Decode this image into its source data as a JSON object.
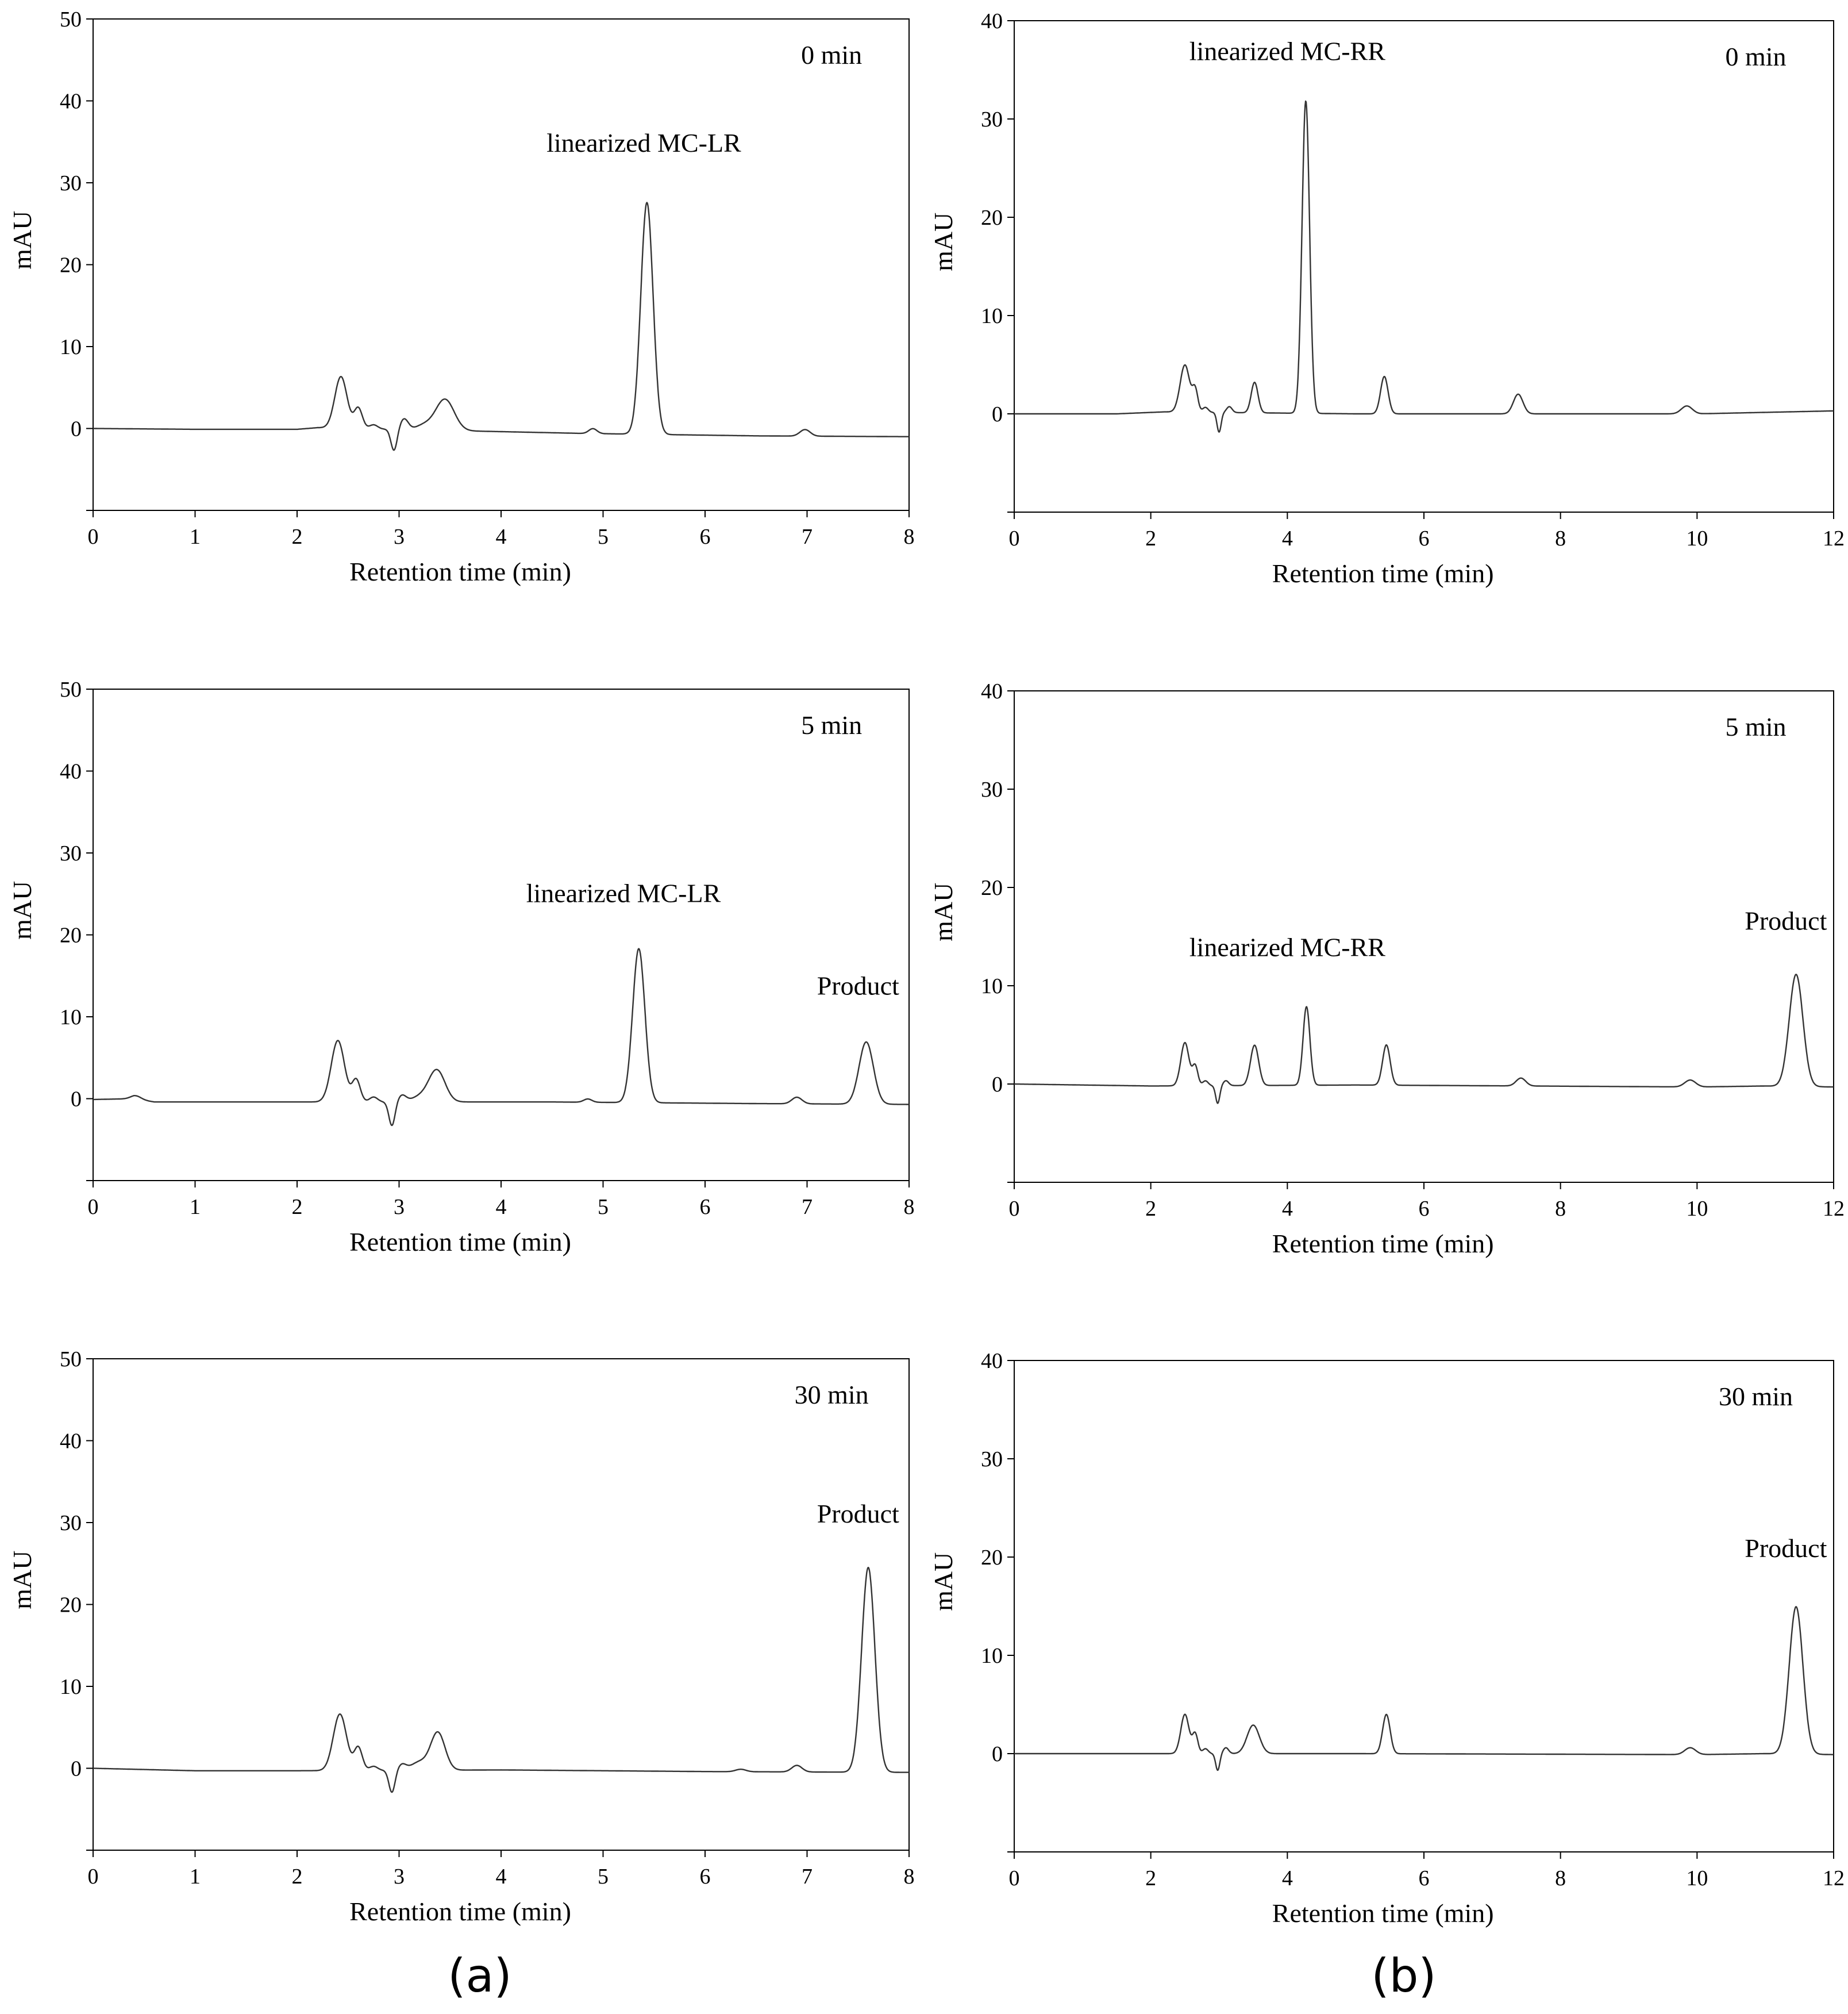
{
  "figure": {
    "panel_labels": [
      "(a)",
      "(b)"
    ]
  },
  "chart_data": [
    {
      "type": "line",
      "panel": "a",
      "time_label": "0 min",
      "xlabel": "Retention time (min)",
      "ylabel": "mAU",
      "xlim": [
        0,
        8
      ],
      "ylim": [
        -10,
        50
      ],
      "x_ticks": [
        0,
        1,
        2,
        3,
        4,
        5,
        6,
        7,
        8
      ],
      "y_ticks": [
        0,
        10,
        20,
        30,
        40,
        50
      ],
      "grid": false,
      "baseline": [
        [
          0,
          0
        ],
        [
          1,
          -0.1
        ],
        [
          2,
          -0.1
        ],
        [
          2.2,
          0.1
        ],
        [
          4.8,
          -0.6
        ],
        [
          6.5,
          -0.9
        ],
        [
          8,
          -1.0
        ]
      ],
      "peaks": [
        {
          "t": 2.43,
          "h": 6.3,
          "w": 0.06
        },
        {
          "t": 2.6,
          "h": 2.5,
          "w": 0.04
        },
        {
          "t": 2.75,
          "h": 0.5,
          "w": 0.04
        },
        {
          "t": 2.95,
          "h": -2.6,
          "w": 0.03
        },
        {
          "t": 3.05,
          "h": 1.3,
          "w": 0.04
        },
        {
          "t": 3.25,
          "h": 0.6,
          "w": 0.08
        },
        {
          "t": 3.45,
          "h": 3.8,
          "w": 0.09
        },
        {
          "t": 4.9,
          "h": 0.6,
          "w": 0.04
        },
        {
          "t": 5.43,
          "h": 28.3,
          "w": 0.06
        },
        {
          "t": 6.98,
          "h": 0.8,
          "w": 0.05
        }
      ],
      "annotations": [
        {
          "text": "linearized MC-LR",
          "x": 5.4,
          "y": 33.8
        }
      ]
    },
    {
      "type": "line",
      "panel": "b",
      "time_label": "0 min",
      "xlabel": "Retention time (min)",
      "ylabel": "mAU",
      "xlim": [
        0,
        12
      ],
      "ylim": [
        -10,
        40
      ],
      "x_ticks": [
        0,
        2,
        4,
        6,
        8,
        10,
        12
      ],
      "y_ticks": [
        0,
        10,
        20,
        30,
        40
      ],
      "grid": false,
      "baseline": [
        [
          0,
          0
        ],
        [
          1.5,
          0
        ],
        [
          2.2,
          0.2
        ],
        [
          5,
          0
        ],
        [
          10,
          0
        ],
        [
          12,
          0.3
        ]
      ],
      "peaks": [
        {
          "t": 2.5,
          "h": 4.8,
          "w": 0.07
        },
        {
          "t": 2.65,
          "h": 2.2,
          "w": 0.04
        },
        {
          "t": 2.8,
          "h": 0.5,
          "w": 0.04
        },
        {
          "t": 3.0,
          "h": -2.0,
          "w": 0.03
        },
        {
          "t": 3.15,
          "h": 0.6,
          "w": 0.04
        },
        {
          "t": 3.52,
          "h": 3.1,
          "w": 0.05
        },
        {
          "t": 4.27,
          "h": 31.8,
          "w": 0.055
        },
        {
          "t": 5.42,
          "h": 3.8,
          "w": 0.055
        },
        {
          "t": 7.38,
          "h": 2.0,
          "w": 0.07
        },
        {
          "t": 9.85,
          "h": 0.8,
          "w": 0.08
        }
      ],
      "annotations": [
        {
          "text": "linearized MC-RR",
          "x": 4.0,
          "y": 36.0
        }
      ]
    },
    {
      "type": "line",
      "panel": "a",
      "time_label": "5 min",
      "xlabel": "Retention time (min)",
      "ylabel": "mAU",
      "xlim": [
        0,
        8
      ],
      "ylim": [
        -10,
        50
      ],
      "x_ticks": [
        0,
        1,
        2,
        3,
        4,
        5,
        6,
        7,
        8
      ],
      "y_ticks": [
        0,
        10,
        20,
        30,
        40,
        50
      ],
      "grid": false,
      "baseline": [
        [
          0,
          -0.1
        ],
        [
          0.4,
          0
        ],
        [
          0.6,
          -0.4
        ],
        [
          2,
          -0.4
        ],
        [
          4.5,
          -0.4
        ],
        [
          6.5,
          -0.6
        ],
        [
          8,
          -0.7
        ]
      ],
      "peaks": [
        {
          "t": 0.42,
          "h": 0.4,
          "w": 0.05
        },
        {
          "t": 2.4,
          "h": 7.5,
          "w": 0.065
        },
        {
          "t": 2.58,
          "h": 2.7,
          "w": 0.04
        },
        {
          "t": 2.75,
          "h": 0.6,
          "w": 0.04
        },
        {
          "t": 2.93,
          "h": -2.9,
          "w": 0.03
        },
        {
          "t": 3.03,
          "h": 0.8,
          "w": 0.04
        },
        {
          "t": 3.2,
          "h": 0.6,
          "w": 0.08
        },
        {
          "t": 3.37,
          "h": 3.9,
          "w": 0.08
        },
        {
          "t": 4.85,
          "h": 0.4,
          "w": 0.04
        },
        {
          "t": 5.35,
          "h": 18.8,
          "w": 0.06
        },
        {
          "t": 6.9,
          "h": 0.8,
          "w": 0.05
        },
        {
          "t": 7.58,
          "h": 7.6,
          "w": 0.07
        }
      ],
      "annotations": [
        {
          "text": "linearized MC-LR",
          "x": 5.2,
          "y": 24.0
        },
        {
          "text": "Product",
          "x": 7.5,
          "y": 12.7
        }
      ]
    },
    {
      "type": "line",
      "panel": "b",
      "time_label": "5 min",
      "xlabel": "Retention time (min)",
      "ylabel": "mAU",
      "xlim": [
        0,
        12
      ],
      "ylim": [
        -10,
        40
      ],
      "x_ticks": [
        0,
        2,
        4,
        6,
        8,
        10,
        12
      ],
      "y_ticks": [
        0,
        10,
        20,
        30,
        40
      ],
      "grid": false,
      "baseline": [
        [
          0,
          0
        ],
        [
          2,
          -0.2
        ],
        [
          5,
          -0.1
        ],
        [
          10,
          -0.3
        ],
        [
          11,
          -0.2
        ],
        [
          12,
          -0.3
        ]
      ],
      "peaks": [
        {
          "t": 2.5,
          "h": 4.4,
          "w": 0.06
        },
        {
          "t": 2.65,
          "h": 2.0,
          "w": 0.04
        },
        {
          "t": 2.8,
          "h": 0.5,
          "w": 0.04
        },
        {
          "t": 2.98,
          "h": -1.8,
          "w": 0.03
        },
        {
          "t": 3.1,
          "h": 0.5,
          "w": 0.04
        },
        {
          "t": 3.52,
          "h": 4.1,
          "w": 0.06
        },
        {
          "t": 4.28,
          "h": 8.0,
          "w": 0.05
        },
        {
          "t": 5.45,
          "h": 4.1,
          "w": 0.055
        },
        {
          "t": 7.42,
          "h": 0.8,
          "w": 0.07
        },
        {
          "t": 9.9,
          "h": 0.7,
          "w": 0.08
        },
        {
          "t": 11.45,
          "h": 11.4,
          "w": 0.1
        }
      ],
      "annotations": [
        {
          "text": "linearized MC-RR",
          "x": 4.0,
          "y": 13.0
        },
        {
          "text": "Product",
          "x": 11.3,
          "y": 15.7
        }
      ]
    },
    {
      "type": "line",
      "panel": "a",
      "time_label": "30 min",
      "xlabel": "Retention time (min)",
      "ylabel": "mAU",
      "xlim": [
        0,
        8
      ],
      "ylim": [
        -10,
        50
      ],
      "x_ticks": [
        0,
        1,
        2,
        3,
        4,
        5,
        6,
        7,
        8
      ],
      "y_ticks": [
        0,
        10,
        20,
        30,
        40,
        50
      ],
      "grid": false,
      "baseline": [
        [
          0,
          0
        ],
        [
          1,
          -0.3
        ],
        [
          2,
          -0.3
        ],
        [
          4,
          -0.2
        ],
        [
          6,
          -0.4
        ],
        [
          8,
          -0.5
        ]
      ],
      "peaks": [
        {
          "t": 2.42,
          "h": 6.9,
          "w": 0.065
        },
        {
          "t": 2.6,
          "h": 2.8,
          "w": 0.04
        },
        {
          "t": 2.75,
          "h": 0.5,
          "w": 0.04
        },
        {
          "t": 2.93,
          "h": -2.7,
          "w": 0.03
        },
        {
          "t": 3.03,
          "h": 0.7,
          "w": 0.04
        },
        {
          "t": 3.2,
          "h": 1.0,
          "w": 0.08
        },
        {
          "t": 3.38,
          "h": 4.6,
          "w": 0.07
        },
        {
          "t": 6.35,
          "h": 0.3,
          "w": 0.05
        },
        {
          "t": 6.9,
          "h": 0.8,
          "w": 0.05
        },
        {
          "t": 7.6,
          "h": 25.0,
          "w": 0.065
        }
      ],
      "annotations": [
        {
          "text": "Product",
          "x": 7.5,
          "y": 30.0
        }
      ]
    },
    {
      "type": "line",
      "panel": "b",
      "time_label": "30 min",
      "xlabel": "Retention time (min)",
      "ylabel": "mAU",
      "xlim": [
        0,
        12
      ],
      "ylim": [
        -10,
        40
      ],
      "x_ticks": [
        0,
        2,
        4,
        6,
        8,
        10,
        12
      ],
      "y_ticks": [
        0,
        10,
        20,
        30,
        40
      ],
      "grid": false,
      "baseline": [
        [
          0,
          0
        ],
        [
          2,
          0
        ],
        [
          5,
          0
        ],
        [
          10,
          -0.1
        ],
        [
          11,
          0
        ],
        [
          12,
          -0.1
        ]
      ],
      "peaks": [
        {
          "t": 2.5,
          "h": 4.0,
          "w": 0.06
        },
        {
          "t": 2.65,
          "h": 2.0,
          "w": 0.04
        },
        {
          "t": 2.8,
          "h": 0.5,
          "w": 0.04
        },
        {
          "t": 2.98,
          "h": -1.7,
          "w": 0.03
        },
        {
          "t": 3.1,
          "h": 0.6,
          "w": 0.04
        },
        {
          "t": 3.5,
          "h": 2.9,
          "w": 0.09
        },
        {
          "t": 5.45,
          "h": 4.0,
          "w": 0.055
        },
        {
          "t": 9.9,
          "h": 0.7,
          "w": 0.08
        },
        {
          "t": 11.45,
          "h": 15.0,
          "w": 0.1
        }
      ],
      "annotations": [
        {
          "text": "Product",
          "x": 11.3,
          "y": 20.0
        }
      ]
    }
  ]
}
